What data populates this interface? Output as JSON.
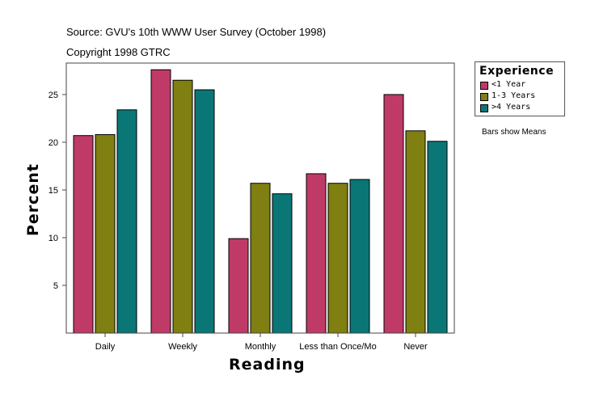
{
  "header": {
    "source": "Source: GVU's 10th WWW User Survey (October 1998)",
    "copyright": "Copyright 1998 GTRC"
  },
  "note": "Bars show Means",
  "chart_data": {
    "type": "bar",
    "title": "",
    "xlabel": "Reading",
    "ylabel": "Percent",
    "ylim": [
      0,
      28.3
    ],
    "yticks": [
      5,
      10,
      15,
      20,
      25
    ],
    "categories": [
      "Daily",
      "Weekly",
      "Monthly",
      "Less than Once/Mo",
      "Never"
    ],
    "legend_title": "Experience",
    "legend_position": "right",
    "series": [
      {
        "name": "<1 Year",
        "color": "#c03a67",
        "values": [
          20.7,
          27.6,
          9.9,
          16.7,
          25.0
        ]
      },
      {
        "name": "1-3 Years",
        "color": "#7f7f12",
        "values": [
          20.8,
          26.5,
          15.7,
          15.7,
          21.2
        ]
      },
      {
        "name": ">4 Years",
        "color": "#0b7676",
        "values": [
          23.4,
          25.5,
          14.6,
          16.1,
          20.1
        ]
      }
    ]
  }
}
